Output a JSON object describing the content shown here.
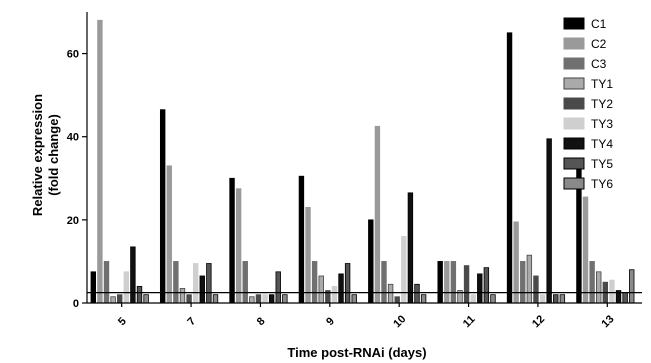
{
  "chart_data": {
    "type": "bar",
    "title": "",
    "xlabel": "Time post-RNAi (days)",
    "ylabel_lines": [
      "Relative expression",
      "(fold change)"
    ],
    "categories": [
      "5",
      "7",
      "8",
      "9",
      "10",
      "11",
      "12",
      "13"
    ],
    "ylim": [
      0,
      70
    ],
    "yticks": [
      0,
      20,
      40,
      60
    ],
    "reference_line": 2.5,
    "legend_position": "top-right",
    "series": [
      {
        "name": "C1",
        "color": "#000000",
        "stroke": "#000000",
        "values": [
          7.5,
          46.5,
          30,
          30.5,
          20,
          10,
          65,
          33
        ]
      },
      {
        "name": "C2",
        "color": "#9a9a9a",
        "stroke": "#9a9a9a",
        "values": [
          68,
          33,
          27.5,
          23,
          42.5,
          10,
          19.5,
          25.5
        ]
      },
      {
        "name": "C3",
        "color": "#707070",
        "stroke": "#707070",
        "values": [
          10,
          10,
          10,
          10,
          10,
          10,
          10,
          10
        ]
      },
      {
        "name": "TY1",
        "color": "#aaaaaa",
        "stroke": "#444444",
        "values": [
          1.5,
          3.5,
          1.5,
          6.5,
          4.5,
          3,
          11.5,
          7.5
        ]
      },
      {
        "name": "TY2",
        "color": "#4a4a4a",
        "stroke": "#4a4a4a",
        "values": [
          2,
          2,
          2,
          3,
          1.5,
          9,
          6.5,
          5
        ]
      },
      {
        "name": "TY3",
        "color": "#cfcfcf",
        "stroke": "#cfcfcf",
        "values": [
          7.5,
          9.5,
          2,
          4,
          16,
          2,
          2,
          5.5
        ]
      },
      {
        "name": "TY4",
        "color": "#111111",
        "stroke": "#000000",
        "values": [
          13.5,
          6.5,
          2,
          7,
          26.5,
          7,
          39.5,
          3
        ]
      },
      {
        "name": "TY5",
        "color": "#555555",
        "stroke": "#000000",
        "values": [
          4,
          9.5,
          7.5,
          9.5,
          4.5,
          8.5,
          2,
          2.5
        ]
      },
      {
        "name": "TY6",
        "color": "#8a8a8a",
        "stroke": "#000000",
        "values": [
          2,
          2,
          2,
          2,
          2,
          2,
          2,
          8
        ]
      }
    ]
  }
}
